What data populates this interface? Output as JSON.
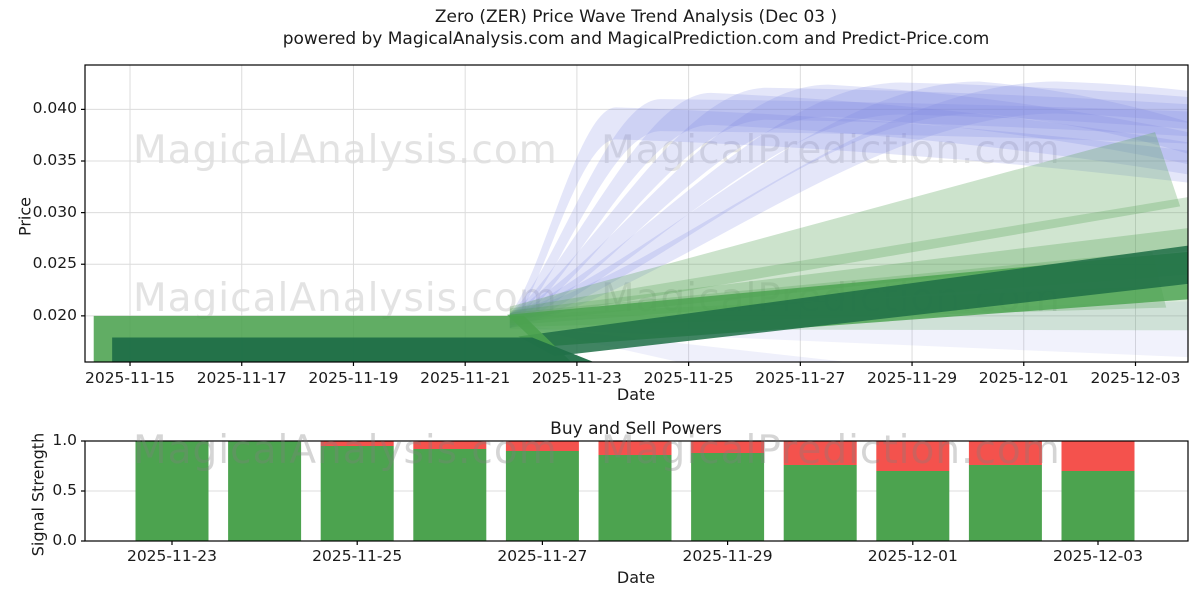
{
  "title": {
    "line1": "Zero (ZER) Price Wave Trend Analysis (Dec 03 )",
    "line2": "powered by MagicalAnalysis.com and MagicalPrediction.com and Predict-Price.com"
  },
  "watermarks": {
    "left": "MagicalAnalysis.com",
    "right": "MagicalPrediction.com"
  },
  "colors": {
    "history_outer": "#4ba24f",
    "history_core": "#1f6f47",
    "trend_green": "#55a357",
    "wave_blue": "#7a81e0",
    "bar_buy": "#4ca34f",
    "bar_sell": "#f4524d",
    "grid": "#dcdcdc",
    "spine": "#000000",
    "text": "#1a1a1a"
  },
  "chart_data": [
    {
      "type": "area",
      "name": "price-wave-trend",
      "xlabel": "Date",
      "ylabel": "Price",
      "x_day0_date": "2025-11-14",
      "x_range_days": [
        0.194,
        19.94
      ],
      "ylim": [
        0.01553,
        0.0443
      ],
      "x_tick_days": [
        1,
        3,
        5,
        7,
        9,
        11,
        13,
        15,
        17,
        19
      ],
      "x_tick_labels": [
        "2025-11-15",
        "2025-11-17",
        "2025-11-19",
        "2025-11-21",
        "2025-11-23",
        "2025-11-25",
        "2025-11-27",
        "2025-11-29",
        "2025-12-01",
        "2025-12-03"
      ],
      "y_ticks": [
        0.02,
        0.025,
        0.03,
        0.035,
        0.04
      ],
      "y_tick_labels": [
        "0.020",
        "0.025",
        "0.030",
        "0.035",
        "0.040"
      ],
      "grid": true,
      "forecast_start_day": 7.8,
      "history": {
        "outer_flat": [
          [
            0.35,
            0.02
          ],
          [
            8.05,
            0.02
          ],
          [
            8.9,
            0.01553
          ],
          [
            0.35,
            0.01553
          ]
        ],
        "core_flat": [
          [
            0.68,
            0.0179
          ],
          [
            8.2,
            0.0179
          ],
          [
            9.3,
            0.01553
          ],
          [
            0.68,
            0.01553
          ]
        ],
        "outer_rise": [
          [
            7.75,
            0.0201
          ],
          [
            19.94,
            0.0262
          ],
          [
            19.94,
            0.0216
          ],
          [
            8.35,
            0.017
          ]
        ],
        "core_rise": [
          [
            7.95,
            0.018
          ],
          [
            19.94,
            0.0268
          ],
          [
            19.94,
            0.0231
          ],
          [
            8.6,
            0.0161
          ]
        ]
      },
      "green_bands": [
        {
          "pts": [
            [
              7.8,
              0.0209
            ],
            [
              19.35,
              0.0378
            ],
            [
              19.8,
              0.0306
            ],
            [
              7.8,
              0.0195
            ]
          ],
          "opacity": 0.3
        },
        {
          "pts": [
            [
              7.8,
              0.0207
            ],
            [
              19.94,
              0.0315
            ],
            [
              19.94,
              0.0263
            ],
            [
              7.8,
              0.0193
            ]
          ],
          "opacity": 0.28
        },
        {
          "pts": [
            [
              7.8,
              0.0205
            ],
            [
              19.94,
              0.0285
            ],
            [
              19.94,
              0.024
            ],
            [
              7.8,
              0.0191
            ]
          ],
          "opacity": 0.3
        },
        {
          "pts": [
            [
              7.8,
              0.0203
            ],
            [
              19.3,
              0.0262
            ],
            [
              19.55,
              0.0208
            ],
            [
              7.8,
              0.0189
            ]
          ],
          "opacity": 0.28
        },
        {
          "pts": [
            [
              7.8,
              0.0201
            ],
            [
              19.94,
              0.023
            ],
            [
              19.94,
              0.0186
            ],
            [
              7.8,
              0.0187
            ]
          ],
          "opacity": 0.22
        }
      ],
      "low_blue_bands": [
        {
          "pts": [
            [
              7.8,
              0.0196
            ],
            [
              19.94,
              0.0214
            ],
            [
              19.94,
              0.016
            ],
            [
              7.8,
              0.0188
            ]
          ],
          "opacity": 0.1
        },
        {
          "pts": [
            [
              7.8,
              0.0192
            ],
            [
              13.8,
              0.01555
            ],
            [
              10.8,
              0.01555
            ]
          ],
          "opacity": 0.12
        }
      ],
      "blue_bands": [
        {
          "peak_day": 9.7,
          "peak_price": 0.0402,
          "end_price": 0.036,
          "thickness": 0.0031
        },
        {
          "peak_day": 10.5,
          "peak_price": 0.041,
          "end_price": 0.0398,
          "thickness": 0.0031
        },
        {
          "peak_day": 11.4,
          "peak_price": 0.0416,
          "end_price": 0.0368,
          "thickness": 0.0031
        },
        {
          "peak_day": 12.4,
          "peak_price": 0.0421,
          "end_price": 0.0405,
          "thickness": 0.0031
        },
        {
          "peak_day": 13.5,
          "peak_price": 0.0424,
          "end_price": 0.0378,
          "thickness": 0.0031
        },
        {
          "peak_day": 14.8,
          "peak_price": 0.0426,
          "end_price": 0.0412,
          "thickness": 0.0031
        },
        {
          "peak_day": 16.2,
          "peak_price": 0.0427,
          "end_price": 0.0388,
          "thickness": 0.0031
        },
        {
          "peak_day": 17.6,
          "peak_price": 0.0427,
          "end_price": 0.0418,
          "thickness": 0.0031
        }
      ]
    },
    {
      "type": "bar",
      "name": "buy-sell-powers",
      "title": "Buy and Sell Powers",
      "xlabel": "Date",
      "ylabel": "Signal Strength",
      "categories": [
        "2025-11-23",
        "2025-11-24",
        "2025-11-25",
        "2025-11-26",
        "2025-11-27",
        "2025-11-28",
        "2025-11-29",
        "2025-11-30",
        "2025-12-01",
        "2025-12-02",
        "2025-12-03"
      ],
      "series": [
        {
          "name": "Buy Power",
          "color": "#4ca34f",
          "values": [
            1.0,
            1.0,
            0.95,
            0.92,
            0.9,
            0.86,
            0.88,
            0.76,
            0.7,
            0.76,
            0.7
          ]
        },
        {
          "name": "Sell Power",
          "color": "#f4524d",
          "values": [
            0.0,
            0.0,
            0.05,
            0.08,
            0.1,
            0.14,
            0.12,
            0.24,
            0.3,
            0.24,
            0.3
          ]
        }
      ],
      "stacked_total": 1.0,
      "x_tick_labels": [
        "2025-11-23",
        "2025-11-25",
        "2025-11-27",
        "2025-11-29",
        "2025-12-01",
        "2025-12-03"
      ],
      "y_ticks": [
        0.0,
        0.5,
        1.0
      ],
      "y_tick_labels": [
        "0.0",
        "0.5",
        "1.0"
      ],
      "ylim": [
        0,
        1
      ],
      "grid": true
    }
  ]
}
